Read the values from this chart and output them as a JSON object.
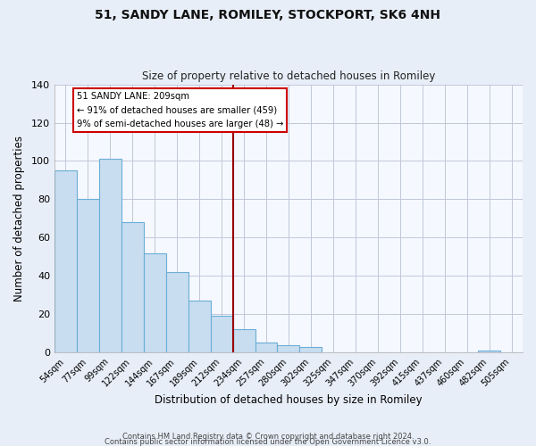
{
  "title": "51, SANDY LANE, ROMILEY, STOCKPORT, SK6 4NH",
  "subtitle": "Size of property relative to detached houses in Romiley",
  "xlabel": "Distribution of detached houses by size in Romiley",
  "ylabel": "Number of detached properties",
  "footer_lines": [
    "Contains HM Land Registry data © Crown copyright and database right 2024.",
    "Contains public sector information licensed under the Open Government Licence v3.0."
  ],
  "bin_labels": [
    "54sqm",
    "77sqm",
    "99sqm",
    "122sqm",
    "144sqm",
    "167sqm",
    "189sqm",
    "212sqm",
    "234sqm",
    "257sqm",
    "280sqm",
    "302sqm",
    "325sqm",
    "347sqm",
    "370sqm",
    "392sqm",
    "415sqm",
    "437sqm",
    "460sqm",
    "482sqm",
    "505sqm"
  ],
  "bar_heights": [
    95,
    80,
    101,
    68,
    52,
    42,
    27,
    19,
    12,
    5,
    4,
    3,
    0,
    0,
    0,
    0,
    0,
    0,
    0,
    1,
    0
  ],
  "bar_color": "#c8ddf0",
  "bar_edge_color": "#6baed6",
  "vline_x_index": 7.5,
  "vline_color": "#990000",
  "annotation_title": "51 SANDY LANE: 209sqm",
  "annotation_line1": "← 91% of detached houses are smaller (459)",
  "annotation_line2": "9% of semi-detached houses are larger (48) →",
  "annotation_box_color": "#ffffff",
  "annotation_box_edge_color": "#cc0000",
  "ylim": [
    0,
    140
  ],
  "yticks": [
    0,
    20,
    40,
    60,
    80,
    100,
    120,
    140
  ],
  "background_color": "#e8eef8",
  "plot_background_color": "#f5f8ff",
  "grid_color": "#c0c8d8"
}
